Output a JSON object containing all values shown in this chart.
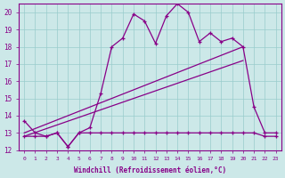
{
  "title": "",
  "xlabel": "Windchill (Refroidissement éolien,°C)",
  "ylabel": "",
  "background_color": "#cce8e8",
  "grid_color": "#99cccc",
  "line_color": "#880088",
  "x_min": 0,
  "x_max": 23,
  "y_min": 12,
  "y_max": 20,
  "series1_x": [
    0,
    1,
    2,
    3,
    4,
    5,
    6,
    7,
    8,
    9,
    10,
    11,
    12,
    13,
    14,
    15,
    16,
    17,
    18,
    19,
    20,
    21,
    22,
    23
  ],
  "series1_y": [
    13.7,
    13.0,
    12.8,
    13.0,
    12.2,
    13.0,
    13.3,
    15.3,
    18.0,
    18.5,
    19.9,
    19.5,
    18.2,
    19.8,
    20.5,
    20.0,
    18.3,
    18.8,
    18.3,
    18.5,
    18.0,
    14.5,
    13.0,
    13.0
  ],
  "series2_x": [
    0,
    1,
    2,
    3,
    4,
    5,
    6,
    7,
    8,
    9,
    10,
    11,
    12,
    13,
    14,
    15,
    16,
    17,
    18,
    19,
    20,
    21,
    22,
    23
  ],
  "series2_y": [
    12.8,
    12.8,
    12.8,
    13.0,
    12.2,
    13.0,
    13.0,
    13.0,
    13.0,
    13.0,
    13.0,
    13.0,
    13.0,
    13.0,
    13.0,
    13.0,
    13.0,
    13.0,
    13.0,
    13.0,
    13.0,
    13.0,
    12.8,
    12.8
  ],
  "series3_x": [
    0,
    20
  ],
  "series3_y": [
    13.0,
    18.0
  ],
  "series4_x": [
    0,
    20
  ],
  "series4_y": [
    12.8,
    17.2
  ]
}
